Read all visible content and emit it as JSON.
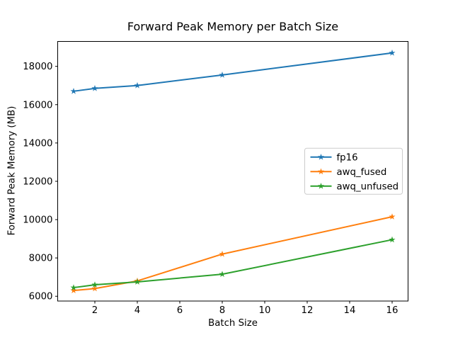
{
  "figure": {
    "background": "#ffffff",
    "title": "Forward Peak Memory per Batch Size",
    "xlabel": "Batch Size",
    "ylabel": "Forward Peak Memory (MB)"
  },
  "chart_data": {
    "type": "line",
    "title": "Forward Peak Memory per Batch Size",
    "xlabel": "Batch Size",
    "ylabel": "Forward Peak Memory (MB)",
    "x": [
      1,
      2,
      4,
      8,
      16
    ],
    "series": [
      {
        "name": "fp16",
        "color": "#1f77b4",
        "values": [
          16700,
          16850,
          17000,
          17550,
          18700
        ]
      },
      {
        "name": "awq_fused",
        "color": "#ff7f0e",
        "values": [
          6300,
          6400,
          6800,
          8200,
          10150
        ]
      },
      {
        "name": "awq_unfused",
        "color": "#2ca02c",
        "values": [
          6450,
          6600,
          6750,
          7150,
          8950
        ]
      }
    ],
    "marker": "star",
    "xlim": [
      0.25,
      16.75
    ],
    "ylim": [
      5750,
      19300
    ],
    "xticks": [
      2,
      4,
      6,
      8,
      10,
      12,
      14,
      16
    ],
    "yticks": [
      6000,
      8000,
      10000,
      12000,
      14000,
      16000,
      18000
    ],
    "grid": false,
    "legend_position": "center right",
    "legend_border_color": "#cccccc",
    "axis_color": "#000000",
    "tick_label_color": "#000000"
  }
}
